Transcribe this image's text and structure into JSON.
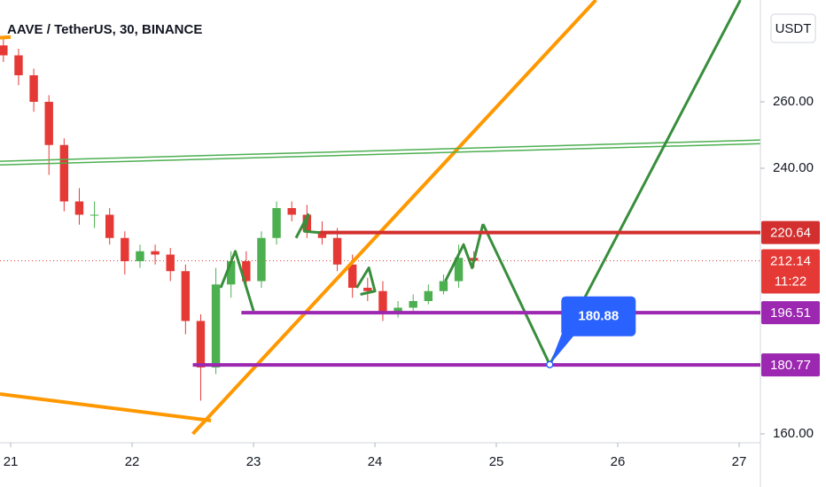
{
  "chart_data": {
    "type": "candlestick",
    "title": "AAVE / TetherUS, 30, BINANCE",
    "currency_button": "USDT",
    "up_color": "#4caf50",
    "down_color": "#e53935",
    "x": [
      20.94,
      21.065,
      21.19,
      21.315,
      21.44,
      21.565,
      21.69,
      21.815,
      21.94,
      22.065,
      22.19,
      22.315,
      22.44,
      22.565,
      22.69,
      22.815,
      22.94,
      23.065,
      23.19,
      23.315,
      23.44,
      23.565,
      23.69,
      23.815,
      23.94,
      24.065,
      24.19,
      24.315,
      24.44,
      24.565,
      24.69,
      24.815
    ],
    "open": [
      277,
      274,
      268,
      260,
      247,
      230,
      226,
      226,
      219,
      212,
      215,
      214,
      209,
      194,
      180,
      205,
      212,
      206,
      219,
      228,
      226,
      221,
      219,
      211,
      204,
      203,
      196,
      198,
      200,
      203,
      206,
      213
    ],
    "high": [
      279,
      276,
      270,
      262,
      249,
      234,
      230,
      228,
      221,
      217,
      217,
      216,
      211,
      196,
      210,
      215,
      215,
      221,
      230,
      230,
      229,
      224,
      222,
      214,
      207,
      206,
      200,
      202,
      205,
      208,
      217,
      215
    ],
    "low": [
      272,
      265,
      257,
      238,
      227,
      223,
      222,
      217,
      208,
      210,
      211,
      206,
      190,
      170,
      178,
      201,
      204,
      204,
      217,
      224,
      219,
      217,
      209,
      201,
      200,
      194,
      195,
      197,
      199,
      202,
      204,
      210
    ],
    "close": [
      274,
      268,
      260,
      247,
      230,
      226,
      226,
      219,
      212,
      215,
      214,
      209,
      194,
      180,
      205,
      212,
      206,
      219,
      228,
      226,
      221,
      219,
      211,
      204,
      203,
      196,
      198,
      200,
      203,
      206,
      213,
      212.14
    ],
    "xlim": [
      20.912,
      27.175
    ],
    "ylim": [
      157.33,
      290.67
    ],
    "xticks": [
      21,
      22,
      23,
      24,
      25,
      26,
      27
    ],
    "yticks": [
      {
        "value": 160,
        "label": "160.00"
      },
      {
        "value": 240,
        "label": "240.00"
      },
      {
        "value": 260,
        "label": "260.00"
      }
    ],
    "current_price": 212.14,
    "current_color": "#e53935",
    "countdown": "11:22",
    "levels": [
      {
        "value": 220.64,
        "color": "#d32f2f",
        "start": 23.55
      },
      {
        "value": 196.51,
        "color": "#9c27b0",
        "start": 22.9
      },
      {
        "value": 180.77,
        "color": "#9c27b0",
        "start": 22.5
      }
    ],
    "drawings": [
      {
        "color": "#ff9800",
        "width": 4,
        "x": [
          22.5,
          25.82
        ],
        "y": [
          160,
          290.67
        ]
      },
      {
        "color": "#ff9800",
        "width": 4,
        "x": [
          20.912,
          22.65
        ],
        "y": [
          172,
          164
        ]
      },
      {
        "color": "#ff9800",
        "width": 4,
        "x": [
          20.912,
          21.0
        ],
        "y": [
          279.3,
          279.5
        ]
      },
      {
        "color": "#4caf50",
        "width": 1.5,
        "x": [
          20.912,
          27.175
        ],
        "y": [
          242.1,
          248.5
        ]
      },
      {
        "color": "#4caf50",
        "width": 1.5,
        "x": [
          20.912,
          27.175
        ],
        "y": [
          241.0,
          247.4
        ]
      },
      {
        "color": "#388e3c",
        "width": 3,
        "x": [
          24.89,
          25.44,
          27.01
        ],
        "y": [
          223.2,
          180.88,
          290.67
        ]
      },
      {
        "color": "#388e3c",
        "width": 3,
        "x": [
          22.73,
          22.85,
          23.0
        ],
        "y": [
          204,
          215,
          197
        ]
      },
      {
        "color": "#388e3c",
        "width": 3,
        "x": [
          24.58,
          24.73,
          24.8,
          24.89
        ],
        "y": [
          206,
          217,
          210,
          223.2
        ]
      },
      {
        "color": "#388e3c",
        "width": 3,
        "x": [
          23.35,
          23.45,
          23.42,
          23.55
        ],
        "y": [
          219,
          226,
          221,
          220.6
        ]
      },
      {
        "color": "#388e3c",
        "width": 3,
        "x": [
          23.85,
          23.95,
          24.0,
          23.88
        ],
        "y": [
          204,
          210,
          203,
          202
        ]
      }
    ],
    "callout": {
      "value": 180.88,
      "x": 25.44,
      "color": "#2962ff"
    }
  }
}
